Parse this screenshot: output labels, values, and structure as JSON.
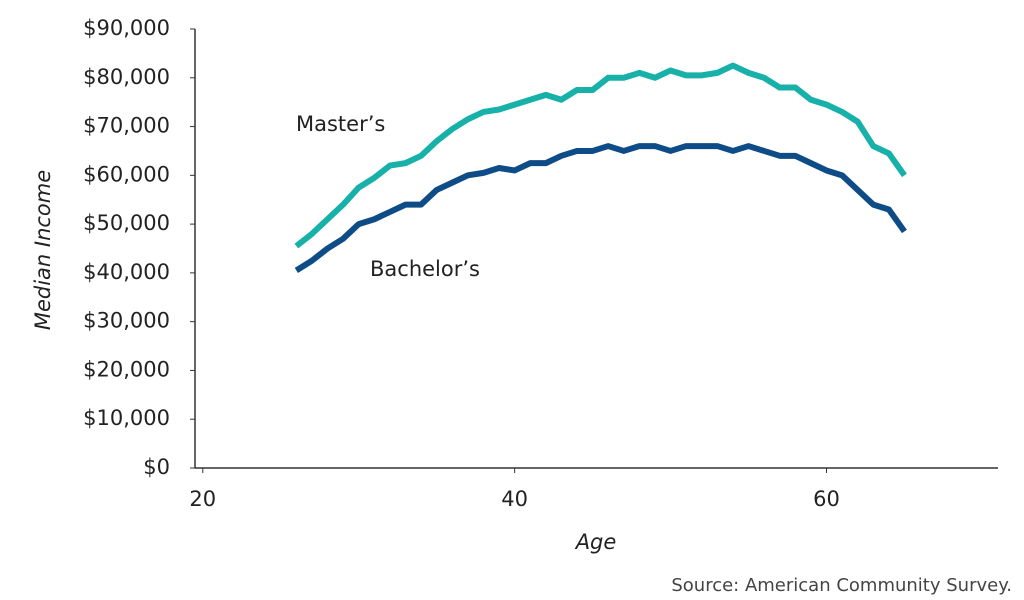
{
  "chart_data": {
    "type": "line",
    "x": [
      26,
      27,
      28,
      29,
      30,
      31,
      32,
      33,
      34,
      35,
      36,
      37,
      38,
      39,
      40,
      41,
      42,
      43,
      44,
      45,
      46,
      47,
      48,
      49,
      50,
      51,
      52,
      53,
      54,
      55,
      56,
      57,
      58,
      59,
      60,
      61,
      62,
      63,
      64,
      65
    ],
    "series": [
      {
        "name": "Master’s",
        "color": "#17b1aa",
        "values": [
          45500,
          48000,
          51000,
          54000,
          57500,
          59500,
          62000,
          62500,
          64000,
          67000,
          69500,
          71500,
          73000,
          73500,
          74500,
          75500,
          76500,
          75500,
          77500,
          77500,
          80000,
          80000,
          81000,
          80000,
          81500,
          80500,
          80500,
          81000,
          82500,
          81000,
          80000,
          78000,
          78000,
          75500,
          74500,
          73000,
          71000,
          66000,
          64500,
          60000
        ]
      },
      {
        "name": "Bachelor’s",
        "color": "#0e4c87",
        "values": [
          40500,
          42500,
          45000,
          47000,
          50000,
          51000,
          52500,
          54000,
          54000,
          57000,
          58500,
          60000,
          60500,
          61500,
          61000,
          62500,
          62500,
          64000,
          65000,
          65000,
          66000,
          65000,
          66000,
          66000,
          65000,
          66000,
          66000,
          66000,
          65000,
          66000,
          65000,
          64000,
          64000,
          62500,
          61000,
          60000,
          57000,
          54000,
          53000,
          48500
        ]
      }
    ],
    "xlabel": "Age",
    "ylabel": "Median Income",
    "xlim": [
      19.5,
      71
    ],
    "xticks": [
      20,
      40,
      60
    ],
    "ylim": [
      0,
      90000
    ],
    "yticks": [
      {
        "value": 0,
        "label": "$0"
      },
      {
        "value": 10000,
        "label": "$10,000"
      },
      {
        "value": 20000,
        "label": "$20,000"
      },
      {
        "value": 30000,
        "label": "$30,000"
      },
      {
        "value": 40000,
        "label": "$40,000"
      },
      {
        "value": 50000,
        "label": "$50,000"
      },
      {
        "value": 60000,
        "label": "$60,000"
      },
      {
        "value": 70000,
        "label": "$70,000"
      },
      {
        "value": 80000,
        "label": "$80,000"
      },
      {
        "value": 90000,
        "label": "$90,000"
      }
    ],
    "grid": false,
    "source": "Source: American Community Survey."
  }
}
